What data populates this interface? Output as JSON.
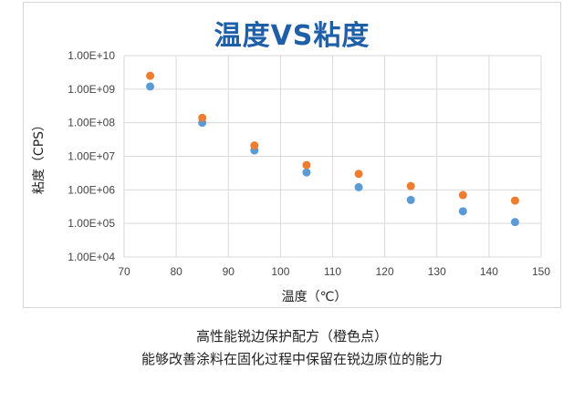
{
  "chart_data": {
    "type": "scatter",
    "title": "温度VS粘度",
    "xlabel": "温度（℃）",
    "ylabel": "粘度（CPS）",
    "xlim": [
      70,
      150
    ],
    "xticks": [
      70,
      80,
      90,
      100,
      110,
      120,
      130,
      140,
      150
    ],
    "y_scale": "log",
    "ylim": [
      10000,
      10000000000
    ],
    "yticks": [
      {
        "value": 10000,
        "label": "1.00E+04"
      },
      {
        "value": 100000,
        "label": "1.00E+05"
      },
      {
        "value": 1000000,
        "label": "1.00E+06"
      },
      {
        "value": 10000000,
        "label": "1.00E+07"
      },
      {
        "value": 100000000,
        "label": "1.00E+08"
      },
      {
        "value": 1000000000,
        "label": "1.00E+09"
      },
      {
        "value": 10000000000,
        "label": "1.00E+10"
      }
    ],
    "grid": "vertical",
    "legend": "none",
    "series": [
      {
        "color": "#5b9bd5",
        "points": [
          {
            "x": 75,
            "y": 1200000000
          },
          {
            "x": 85,
            "y": 100000000
          },
          {
            "x": 95,
            "y": 15000000
          },
          {
            "x": 105,
            "y": 3300000
          },
          {
            "x": 115,
            "y": 1200000
          },
          {
            "x": 125,
            "y": 500000
          },
          {
            "x": 135,
            "y": 230000
          },
          {
            "x": 145,
            "y": 110000
          }
        ]
      },
      {
        "color": "#ed7d31",
        "points": [
          {
            "x": 75,
            "y": 2500000000
          },
          {
            "x": 85,
            "y": 140000000
          },
          {
            "x": 95,
            "y": 21000000
          },
          {
            "x": 105,
            "y": 5500000
          },
          {
            "x": 115,
            "y": 3000000
          },
          {
            "x": 125,
            "y": 1300000
          },
          {
            "x": 135,
            "y": 700000
          },
          {
            "x": 145,
            "y": 480000
          }
        ]
      }
    ]
  },
  "caption": {
    "line1": "高性能锐边保护配方（橙色点）",
    "line2": "能够改善涂料在固化过程中保留在锐边原位的能力"
  },
  "colors": {
    "title": "#1e5fa8",
    "grid": "#d9d9d9"
  }
}
